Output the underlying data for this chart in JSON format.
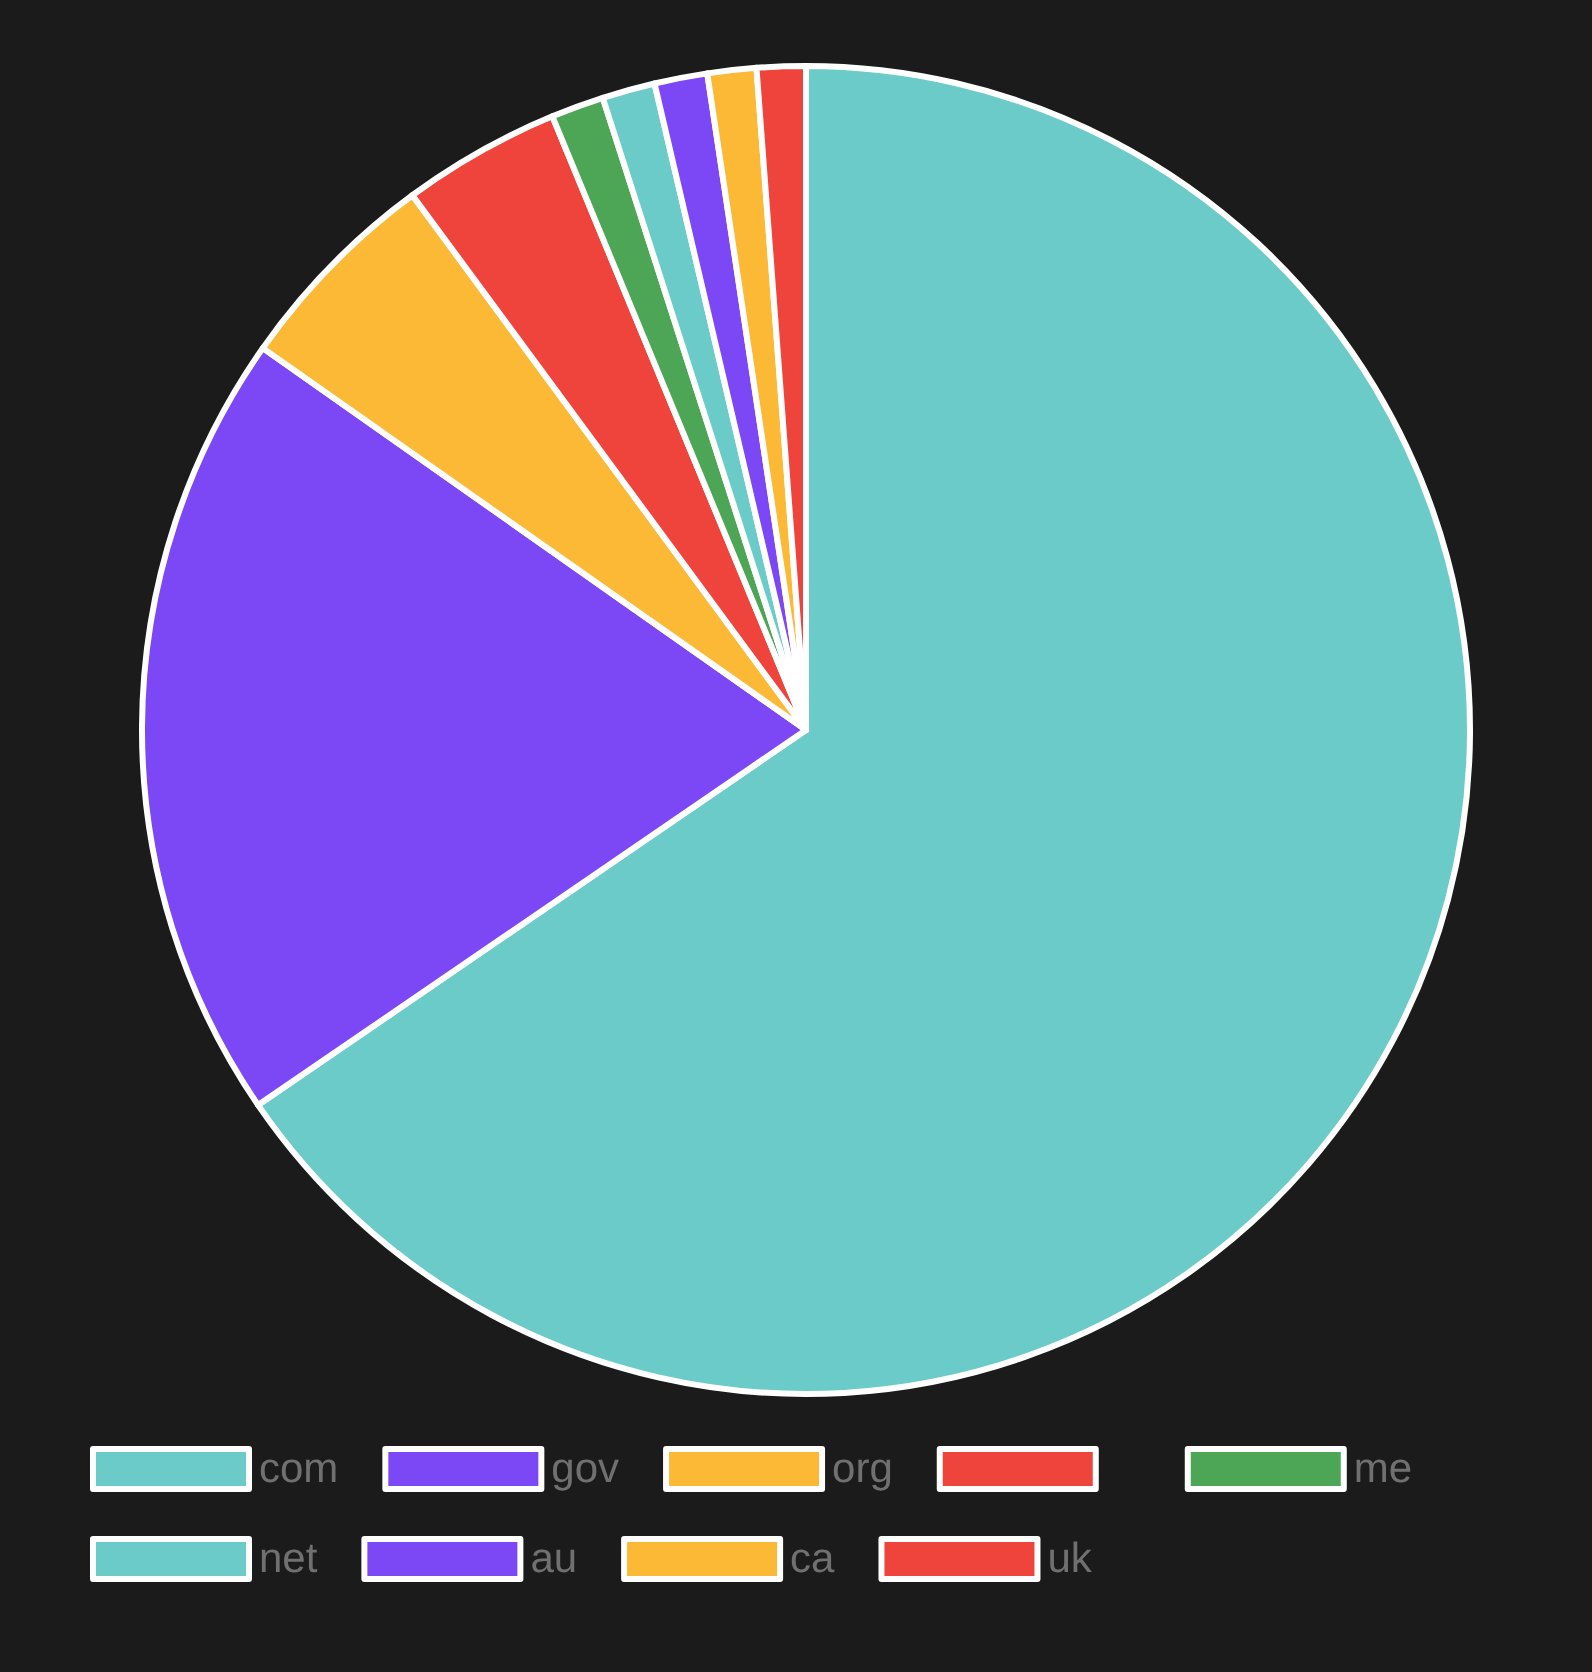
{
  "chart_data": {
    "type": "pie",
    "categories": [
      "com",
      "gov",
      "org",
      null,
      "me",
      "net",
      "au",
      "ca",
      "uk"
    ],
    "values": [
      66.1,
      19.5,
      5.2,
      3.9,
      1.3,
      1.3,
      1.3,
      1.2,
      1.2
    ],
    "colors": [
      "#6bcbc8",
      "#7c47f5",
      "#fbb935",
      "#ee443c",
      "#4ca656",
      "#6bcbc8",
      "#7c47f5",
      "#fbb935",
      "#ee443c"
    ],
    "legend": "bottom"
  }
}
